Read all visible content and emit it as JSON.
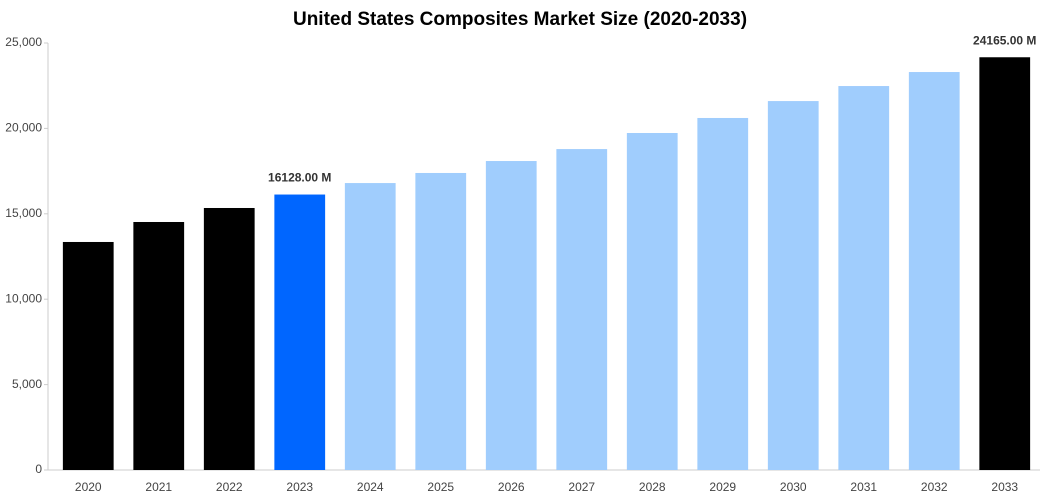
{
  "chart_data": {
    "type": "bar",
    "title": "United States Composites Market Size (2020-2033)",
    "categories": [
      "2020",
      "2021",
      "2022",
      "2023",
      "2024",
      "2025",
      "2026",
      "2027",
      "2028",
      "2029",
      "2030",
      "2031",
      "2032",
      "2033"
    ],
    "values": [
      13350,
      14520,
      15340,
      16128,
      16800,
      17390,
      18090,
      18790,
      19730,
      20610,
      21600,
      22480,
      23300,
      24165
    ],
    "value_labels": [
      null,
      null,
      null,
      "16128.00 M",
      null,
      null,
      null,
      null,
      null,
      null,
      null,
      null,
      null,
      "24165.00 M"
    ],
    "colors": [
      "#000000",
      "#000000",
      "#000000",
      "#0066ff",
      "#a0cdfd",
      "#a0cdfd",
      "#a0cdfd",
      "#a0cdfd",
      "#a0cdfd",
      "#a0cdfd",
      "#a0cdfd",
      "#a0cdfd",
      "#a0cdfd",
      "#000000"
    ],
    "ylim": [
      0,
      25000
    ],
    "yticks": [
      0,
      {
        "value": 5000,
        "label": "5,000"
      },
      {
        "value": 10000,
        "label": "10,000"
      },
      {
        "value": 15000,
        "label": "15,000"
      },
      {
        "value": 20000,
        "label": "20,000"
      },
      {
        "value": 25000,
        "label": "25,000"
      }
    ],
    "grid": false
  }
}
